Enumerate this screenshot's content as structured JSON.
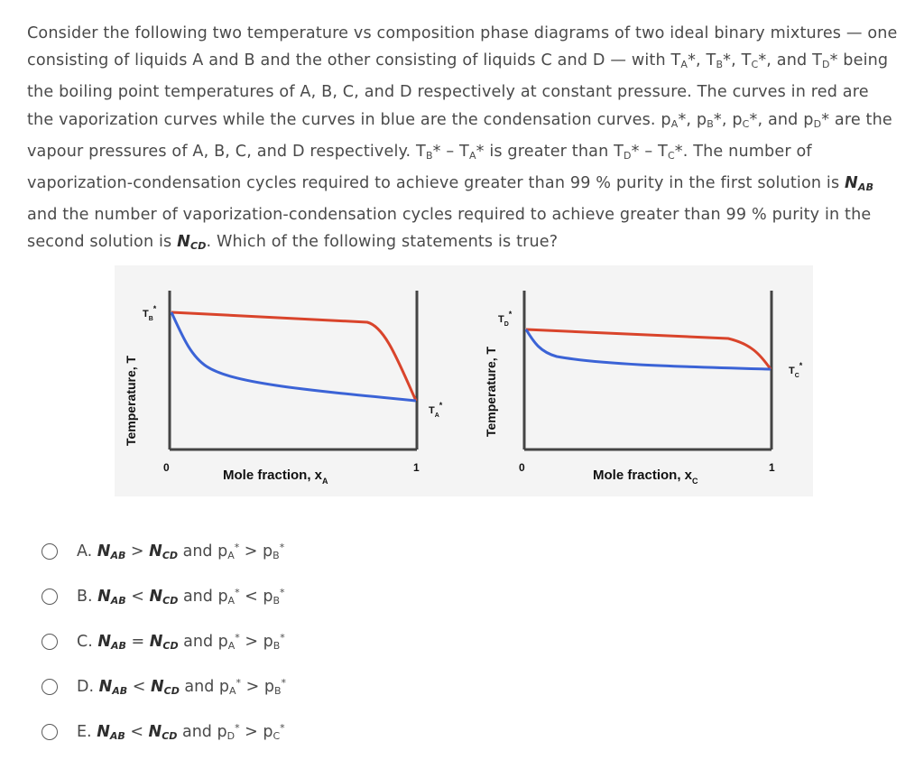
{
  "question": {
    "seg1": "Consider the following two temperature vs composition phase diagrams of two ideal binary mixtures — one consisting of liquids A and B and the other consisting of liquids C and D — with ",
    "TA": "T",
    "TA_sub": "A",
    "TA_star": "*, ",
    "TB": "T",
    "TB_sub": "B",
    "TB_star": "*, ",
    "TC": "T",
    "TC_sub": "C",
    "TC_star": "*, and ",
    "TD": "T",
    "TD_sub": "D",
    "TD_star": "* being the boiling point temperatures of A, B, C, and D respectively at constant pressure. The curves in red are the vaporization curves while the curves in blue are the condensation curves. ",
    "pA": "p",
    "pA_sub": "A",
    "pA_star": "*, ",
    "pB": "p",
    "pB_sub": "B",
    "pB_star": "*, ",
    "pC": "p",
    "pC_sub": "C",
    "pC_star": "*, and ",
    "pD": "p",
    "pD_sub": "D",
    "pD_star": "* are the vapour pressures of A, B, C, and D respectively. ",
    "d1a": "T",
    "d1a_sub": "B",
    "d1a_rest": "* – ",
    "d1b": "T",
    "d1b_sub": "A",
    "d1b_rest": "* is greater than ",
    "d2a": "T",
    "d2a_sub": "D",
    "d2a_rest": "* – ",
    "d2b": "T",
    "d2b_sub": "C",
    "d2b_rest": "*.  The number of vaporization-condensation cycles required to achieve greater than 99 % purity in the first solution is ",
    "NAB": "N",
    "NAB_sub": "AB",
    "seg3": " and the number of vaporization-condensation cycles required to achieve greater than 99 % purity in the second solution is ",
    "NCD": "N",
    "NCD_sub": "CD",
    "seg4": ". Which of the following statements is true?"
  },
  "diagram_left": {
    "ylabel": "Temperature, T",
    "xlabel": "Mole fraction, x",
    "xlabel_sub": "A",
    "tick0": "0",
    "tick1": "1",
    "top_label": "T",
    "top_label_sub": "B",
    "top_label_star": "*",
    "bottom_label": "T",
    "bottom_label_sub": "A",
    "bottom_label_star": "*"
  },
  "diagram_right": {
    "ylabel": "Temperature, T",
    "xlabel": "Mole fraction, x",
    "xlabel_sub": "C",
    "tick0": "0",
    "tick1": "1",
    "top_label": "T",
    "top_label_sub": "D",
    "top_label_star": "*",
    "bottom_label": "T",
    "bottom_label_sub": "C",
    "bottom_label_star": "*"
  },
  "colors": {
    "vaporization_curve": "#d9442b",
    "condensation_curve": "#3b63d6"
  },
  "options": [
    {
      "letter": "A. ",
      "n1": "N",
      "n1s": "AB",
      "op": " > ",
      "n2": "N",
      "n2s": "CD",
      "and": " and ",
      "p1": "p",
      "p1s": "A",
      "st1": "*",
      "cmp": " > ",
      "p2": "p",
      "p2s": "B",
      "st2": "*"
    },
    {
      "letter": "B. ",
      "n1": "N",
      "n1s": "AB",
      "op": " < ",
      "n2": "N",
      "n2s": "CD",
      "and": " and ",
      "p1": "p",
      "p1s": "A",
      "st1": "*",
      "cmp": " < ",
      "p2": "p",
      "p2s": "B",
      "st2": "*"
    },
    {
      "letter": "C. ",
      "n1": "N",
      "n1s": "AB",
      "op": " = ",
      "n2": "N",
      "n2s": "CD",
      "and": " and ",
      "p1": "p",
      "p1s": "A",
      "st1": "*",
      "cmp": " > ",
      "p2": "p",
      "p2s": "B",
      "st2": "*"
    },
    {
      "letter": "D. ",
      "n1": "N",
      "n1s": "AB",
      "op": " < ",
      "n2": "N",
      "n2s": "CD",
      "and": " and ",
      "p1": "p",
      "p1s": "A",
      "st1": "*",
      "cmp": " > ",
      "p2": "p",
      "p2s": "B",
      "st2": "*"
    },
    {
      "letter": "E. ",
      "n1": "N",
      "n1s": "AB",
      "op": " < ",
      "n2": "N",
      "n2s": "CD",
      "and": " and ",
      "p1": "p",
      "p1s": "D",
      "st1": "*",
      "cmp": " > ",
      "p2": "p",
      "p2s": "C",
      "st2": "*"
    }
  ]
}
